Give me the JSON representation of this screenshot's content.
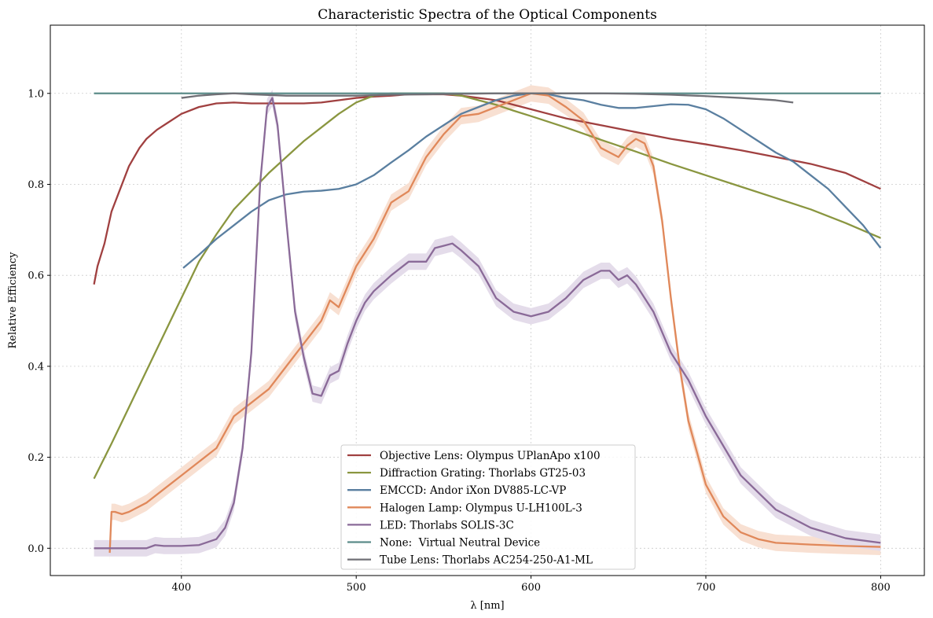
{
  "chart_data": {
    "type": "line",
    "title": "Characteristic Spectra of the Optical Components",
    "xlabel": "λ [nm]",
    "ylabel": "Relative Efficiency",
    "xlim": [
      325,
      825
    ],
    "ylim": [
      -0.06,
      1.15
    ],
    "xticks": [
      400,
      500,
      600,
      700,
      800
    ],
    "yticks": [
      0.0,
      0.2,
      0.4,
      0.6,
      0.8,
      1.0
    ],
    "grid": true,
    "legend_position": "lower-center",
    "series": [
      {
        "name": "Objective Lens: Olympus UPlanApo x100",
        "color": "#a04040",
        "x": [
          350,
          352,
          356,
          360,
          364,
          370,
          376,
          380,
          386,
          392,
          400,
          410,
          420,
          430,
          440,
          450,
          460,
          470,
          480,
          490,
          500,
          510,
          520,
          530,
          540,
          550,
          560,
          570,
          580,
          590,
          600,
          610,
          620,
          640,
          660,
          680,
          700,
          720,
          740,
          760,
          780,
          800
        ],
        "y": [
          0.58,
          0.62,
          0.67,
          0.74,
          0.78,
          0.84,
          0.88,
          0.9,
          0.92,
          0.935,
          0.955,
          0.97,
          0.978,
          0.98,
          0.978,
          0.978,
          0.978,
          0.978,
          0.98,
          0.985,
          0.99,
          0.993,
          0.995,
          0.998,
          0.998,
          0.998,
          0.995,
          0.99,
          0.985,
          0.975,
          0.965,
          0.955,
          0.945,
          0.93,
          0.915,
          0.9,
          0.888,
          0.875,
          0.86,
          0.845,
          0.825,
          0.79
        ]
      },
      {
        "name": "Diffraction Grating: Thorlabs GT25-03",
        "color": "#8a9640",
        "x": [
          350,
          360,
          370,
          380,
          390,
          400,
          410,
          420,
          430,
          440,
          450,
          460,
          470,
          480,
          490,
          500,
          510,
          520,
          530,
          540,
          550,
          560,
          570,
          580,
          590,
          600,
          620,
          640,
          660,
          680,
          700,
          720,
          740,
          760,
          780,
          800
        ],
        "y": [
          0.153,
          0.23,
          0.31,
          0.39,
          0.47,
          0.55,
          0.63,
          0.69,
          0.745,
          0.785,
          0.825,
          0.86,
          0.895,
          0.925,
          0.955,
          0.98,
          0.995,
          1.0,
          1.0,
          1.0,
          1.0,
          0.995,
          0.985,
          0.975,
          0.962,
          0.95,
          0.925,
          0.898,
          0.872,
          0.845,
          0.82,
          0.795,
          0.77,
          0.745,
          0.715,
          0.682
        ]
      },
      {
        "name": "EMCCD: Andor iXon DV885-LC-VP",
        "color": "#5a7fa0",
        "x": [
          401,
          410,
          420,
          430,
          440,
          450,
          460,
          470,
          480,
          490,
          500,
          510,
          520,
          530,
          540,
          550,
          560,
          570,
          580,
          590,
          600,
          610,
          620,
          630,
          640,
          650,
          660,
          670,
          680,
          690,
          700,
          710,
          720,
          730,
          740,
          750,
          760,
          770,
          780,
          790,
          800
        ],
        "y": [
          0.616,
          0.645,
          0.68,
          0.71,
          0.74,
          0.765,
          0.778,
          0.784,
          0.786,
          0.79,
          0.8,
          0.82,
          0.848,
          0.875,
          0.905,
          0.93,
          0.955,
          0.97,
          0.985,
          0.995,
          1.0,
          0.998,
          0.99,
          0.985,
          0.975,
          0.968,
          0.968,
          0.972,
          0.976,
          0.975,
          0.965,
          0.945,
          0.92,
          0.895,
          0.87,
          0.85,
          0.82,
          0.79,
          0.75,
          0.71,
          0.66
        ]
      },
      {
        "name": "Halogen Lamp: Olympus U-LH100L-3",
        "color": "#e0885a",
        "band": "#f8e0d2",
        "x": [
          359,
          360,
          362,
          366,
          370,
          380,
          390,
          400,
          410,
          420,
          430,
          440,
          450,
          460,
          470,
          480,
          485,
          490,
          500,
          510,
          520,
          530,
          540,
          550,
          560,
          570,
          580,
          590,
          600,
          610,
          620,
          630,
          640,
          650,
          655,
          660,
          665,
          670,
          675,
          680,
          685,
          690,
          700,
          710,
          720,
          730,
          740,
          760,
          780,
          800
        ],
        "y": [
          -0.01,
          0.08,
          0.08,
          0.075,
          0.08,
          0.1,
          0.13,
          0.16,
          0.19,
          0.22,
          0.29,
          0.32,
          0.35,
          0.4,
          0.45,
          0.5,
          0.545,
          0.53,
          0.62,
          0.68,
          0.76,
          0.785,
          0.86,
          0.91,
          0.95,
          0.955,
          0.97,
          0.985,
          1.0,
          0.995,
          0.97,
          0.94,
          0.88,
          0.86,
          0.885,
          0.9,
          0.89,
          0.84,
          0.72,
          0.55,
          0.4,
          0.28,
          0.14,
          0.07,
          0.035,
          0.02,
          0.012,
          0.008,
          0.005,
          0.003
        ]
      },
      {
        "name": "LED: Thorlabs SOLIS-3C",
        "color": "#8a6a98",
        "band": "#e4dcea",
        "x": [
          350,
          360,
          370,
          380,
          385,
          390,
          400,
          410,
          420,
          425,
          430,
          435,
          440,
          445,
          449,
          452,
          455,
          460,
          465,
          470,
          475,
          480,
          485,
          490,
          495,
          500,
          505,
          510,
          520,
          530,
          540,
          545,
          550,
          555,
          560,
          570,
          580,
          590,
          600,
          610,
          620,
          630,
          640,
          645,
          650,
          655,
          660,
          670,
          680,
          690,
          700,
          720,
          740,
          760,
          780,
          800
        ],
        "y": [
          0.0,
          0.0,
          0.0,
          0.0,
          0.007,
          0.005,
          0.005,
          0.007,
          0.02,
          0.045,
          0.1,
          0.22,
          0.43,
          0.8,
          0.97,
          0.99,
          0.93,
          0.72,
          0.52,
          0.42,
          0.34,
          0.335,
          0.38,
          0.39,
          0.45,
          0.5,
          0.54,
          0.565,
          0.6,
          0.63,
          0.63,
          0.66,
          0.665,
          0.67,
          0.655,
          0.62,
          0.55,
          0.52,
          0.51,
          0.52,
          0.55,
          0.59,
          0.61,
          0.61,
          0.59,
          0.6,
          0.58,
          0.52,
          0.43,
          0.37,
          0.29,
          0.16,
          0.085,
          0.045,
          0.022,
          0.012
        ]
      },
      {
        "name": "None:  Virtual Neutral Device",
        "color": "#5c8c8a",
        "x": [
          350,
          800
        ],
        "y": [
          1.0,
          1.0
        ]
      },
      {
        "name": "Tube Lens: Thorlabs AC254-250-A1-ML",
        "color": "#707076",
        "x": [
          400,
          410,
          420,
          430,
          440,
          460,
          480,
          500,
          520,
          540,
          560,
          580,
          600,
          620,
          640,
          660,
          680,
          700,
          720,
          740,
          750
        ],
        "y": [
          0.99,
          0.995,
          0.998,
          1.0,
          0.998,
          0.995,
          0.995,
          0.995,
          0.997,
          0.998,
          0.999,
          1.0,
          1.0,
          1.0,
          1.0,
          0.999,
          0.997,
          0.994,
          0.99,
          0.985,
          0.98
        ]
      }
    ]
  }
}
